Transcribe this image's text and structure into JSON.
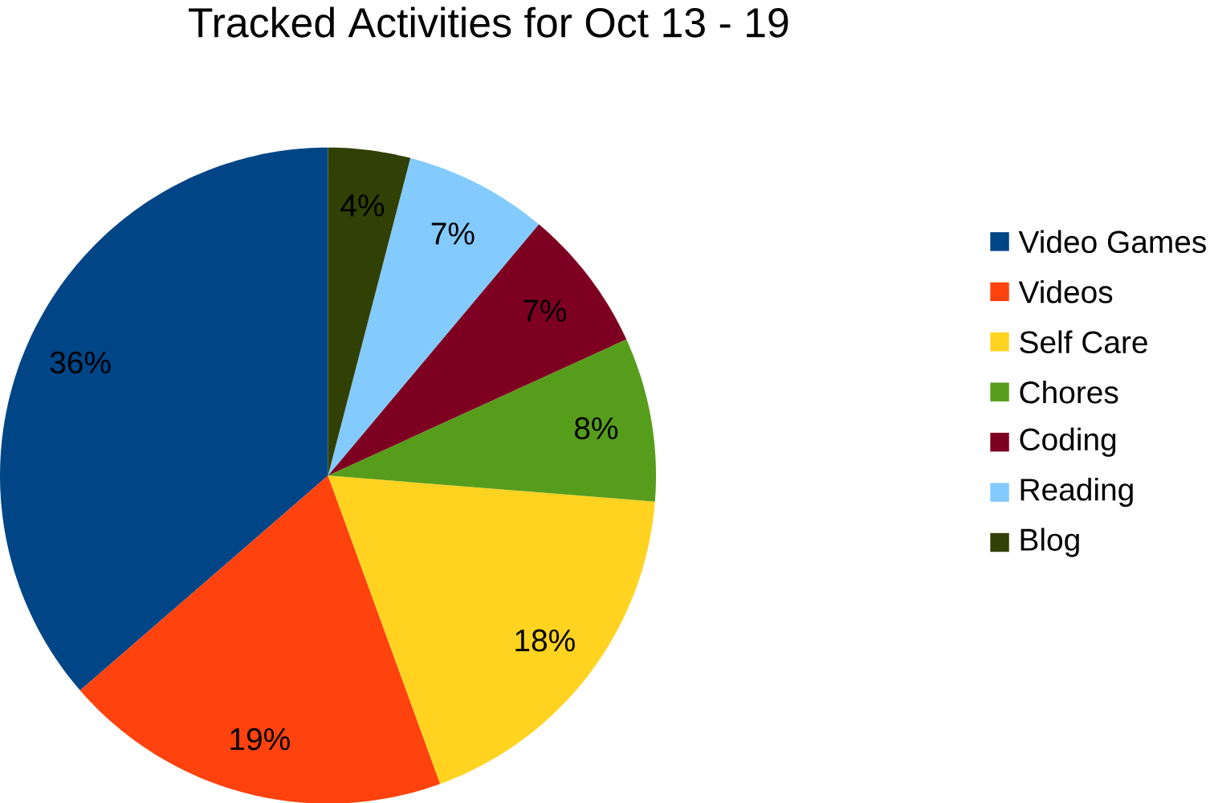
{
  "chart_data": {
    "type": "pie",
    "title": "Tracked Activities for Oct 13 - 19",
    "categories": [
      "Video Games",
      "Videos",
      "Self Care",
      "Chores",
      "Coding",
      "Reading",
      "Blog"
    ],
    "values": [
      36,
      19,
      18,
      8,
      7,
      7,
      4
    ],
    "value_labels": [
      "36%",
      "19%",
      "18%",
      "8%",
      "7%",
      "7%",
      "4%"
    ],
    "colors": [
      "#004586",
      "#ff420e",
      "#ffd320",
      "#579d1c",
      "#7e0021",
      "#83caff",
      "#314004"
    ],
    "legend": "right"
  }
}
